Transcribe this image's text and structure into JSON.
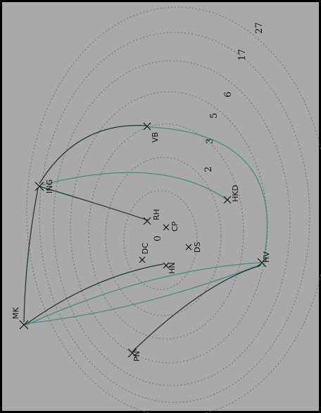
{
  "ring_labels": [
    "0",
    "2",
    "3",
    "5",
    "6",
    "17",
    "27"
  ],
  "nodes": [
    {
      "id": "MK",
      "label": "MK"
    },
    {
      "id": "ING",
      "label": "ING"
    },
    {
      "id": "VB",
      "label": "VB"
    },
    {
      "id": "HKD",
      "label": "HKD"
    },
    {
      "id": "HV",
      "label": "HV"
    },
    {
      "id": "PN",
      "label": "PN"
    },
    {
      "id": "RH",
      "label": "RH"
    },
    {
      "id": "CP",
      "label": "CP"
    },
    {
      "id": "DC",
      "label": "DC"
    },
    {
      "id": "DS",
      "label": "DS"
    },
    {
      "id": "HN",
      "label": "HN"
    }
  ],
  "colors": {
    "background": "#a9a9a9",
    "ring": "#6a6a6a",
    "edge_dark": "#1e3a34",
    "edge_teal": "#3e8f86",
    "ink": "#111111"
  }
}
